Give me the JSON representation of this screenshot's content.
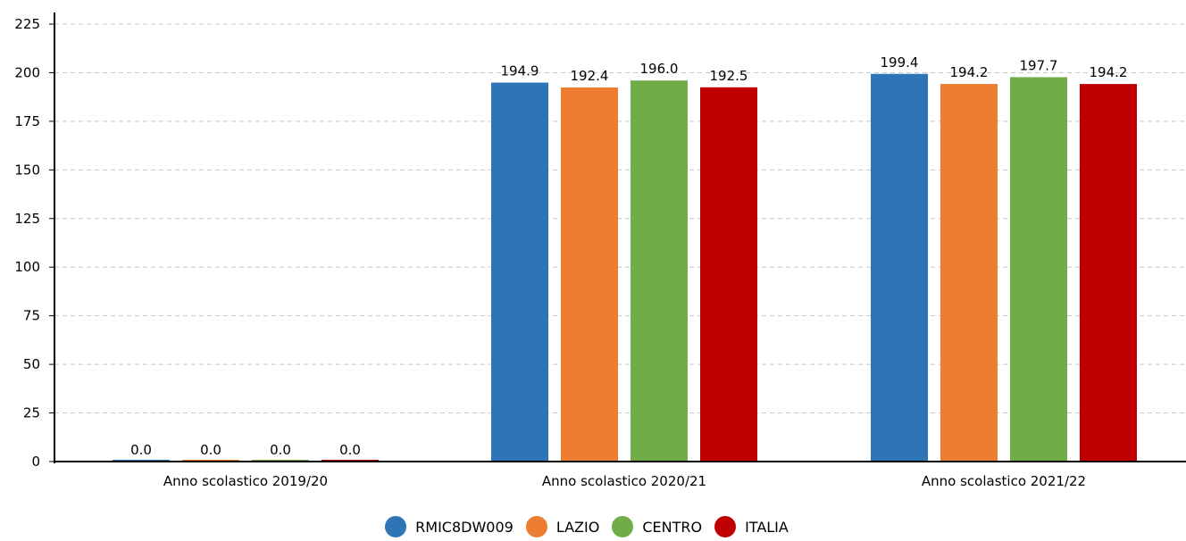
{
  "chart_data": {
    "type": "bar",
    "categories": [
      "Anno scolastico 2019/20",
      "Anno scolastico 2020/21",
      "Anno scolastico 2021/22"
    ],
    "series": [
      {
        "name": "RMIC8DW009",
        "color": "#2e75b6",
        "values": [
          0.0,
          194.9,
          199.4
        ],
        "labels": [
          "0.0",
          "194.9",
          "199.4"
        ]
      },
      {
        "name": "LAZIO",
        "color": "#ed7d31",
        "values": [
          0.0,
          192.4,
          194.2
        ],
        "labels": [
          "0.0",
          "192.4",
          "194.2"
        ]
      },
      {
        "name": "CENTRO",
        "color": "#70ad47",
        "values": [
          0.0,
          196.0,
          197.7
        ],
        "labels": [
          "0.0",
          "196.0",
          "197.7"
        ]
      },
      {
        "name": "ITALIA",
        "color": "#c00000",
        "values": [
          0.0,
          192.5,
          194.2
        ],
        "labels": [
          "0.0",
          "192.5",
          "194.2"
        ]
      }
    ],
    "ylim": [
      0,
      225
    ],
    "yticks": [
      0,
      25,
      50,
      75,
      100,
      125,
      150,
      175,
      200,
      225
    ],
    "grid": true,
    "legend_position": "bottom"
  }
}
